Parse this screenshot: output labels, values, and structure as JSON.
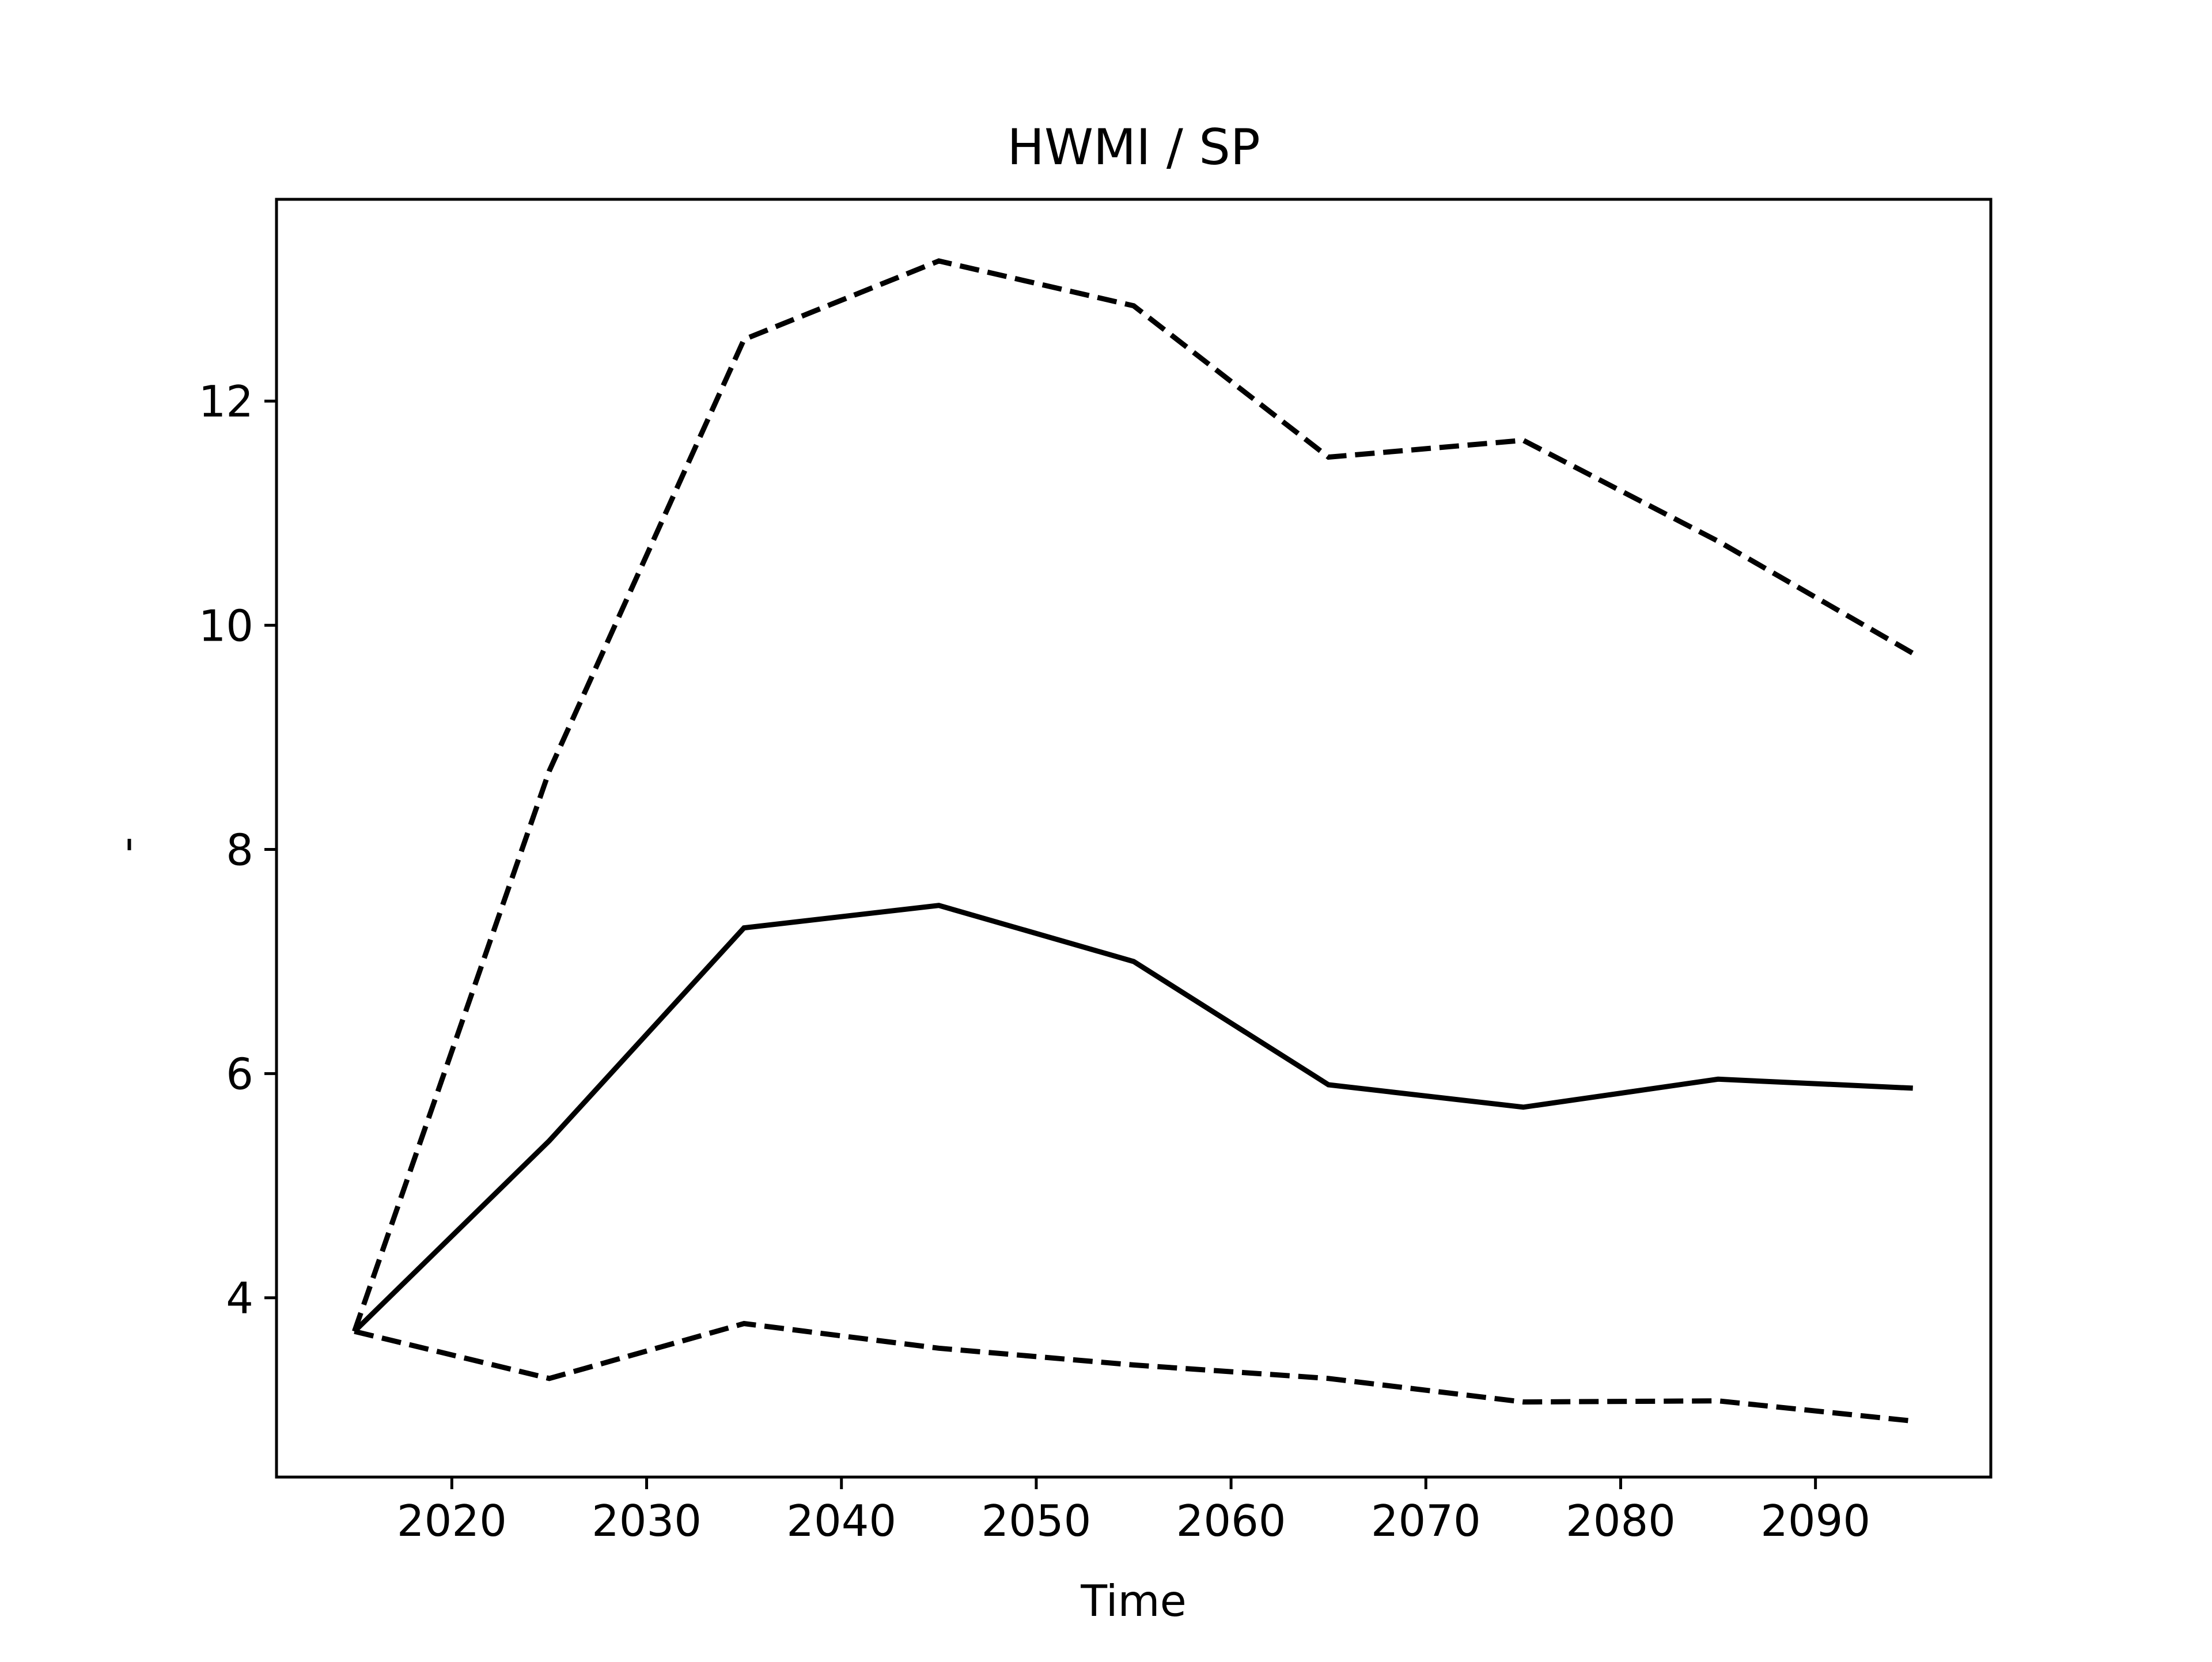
{
  "chart_data": {
    "type": "line",
    "title": "HWMI / SP",
    "xlabel": "Time",
    "ylabel": "-",
    "xlim": [
      2011,
      2099
    ],
    "ylim": [
      2.4,
      13.8
    ],
    "xticks": [
      2020,
      2030,
      2040,
      2050,
      2060,
      2070,
      2080,
      2090
    ],
    "yticks": [
      4,
      6,
      8,
      10,
      12
    ],
    "grid": false,
    "legend": "none",
    "x": [
      2015,
      2025,
      2035,
      2045,
      2055,
      2065,
      2075,
      2085,
      2095
    ],
    "series": [
      {
        "style": "dashed",
        "color": "#000000",
        "values": [
          3.7,
          8.7,
          12.55,
          13.25,
          12.85,
          11.5,
          11.65,
          10.75,
          9.75
        ]
      },
      {
        "style": "solid",
        "color": "#000000",
        "values": [
          3.7,
          5.4,
          7.3,
          7.5,
          7.0,
          5.9,
          5.7,
          5.95,
          5.87
        ]
      },
      {
        "style": "dashed",
        "color": "#000000",
        "values": [
          3.7,
          3.28,
          3.77,
          3.55,
          3.4,
          3.28,
          3.07,
          3.08,
          2.9
        ]
      }
    ]
  }
}
